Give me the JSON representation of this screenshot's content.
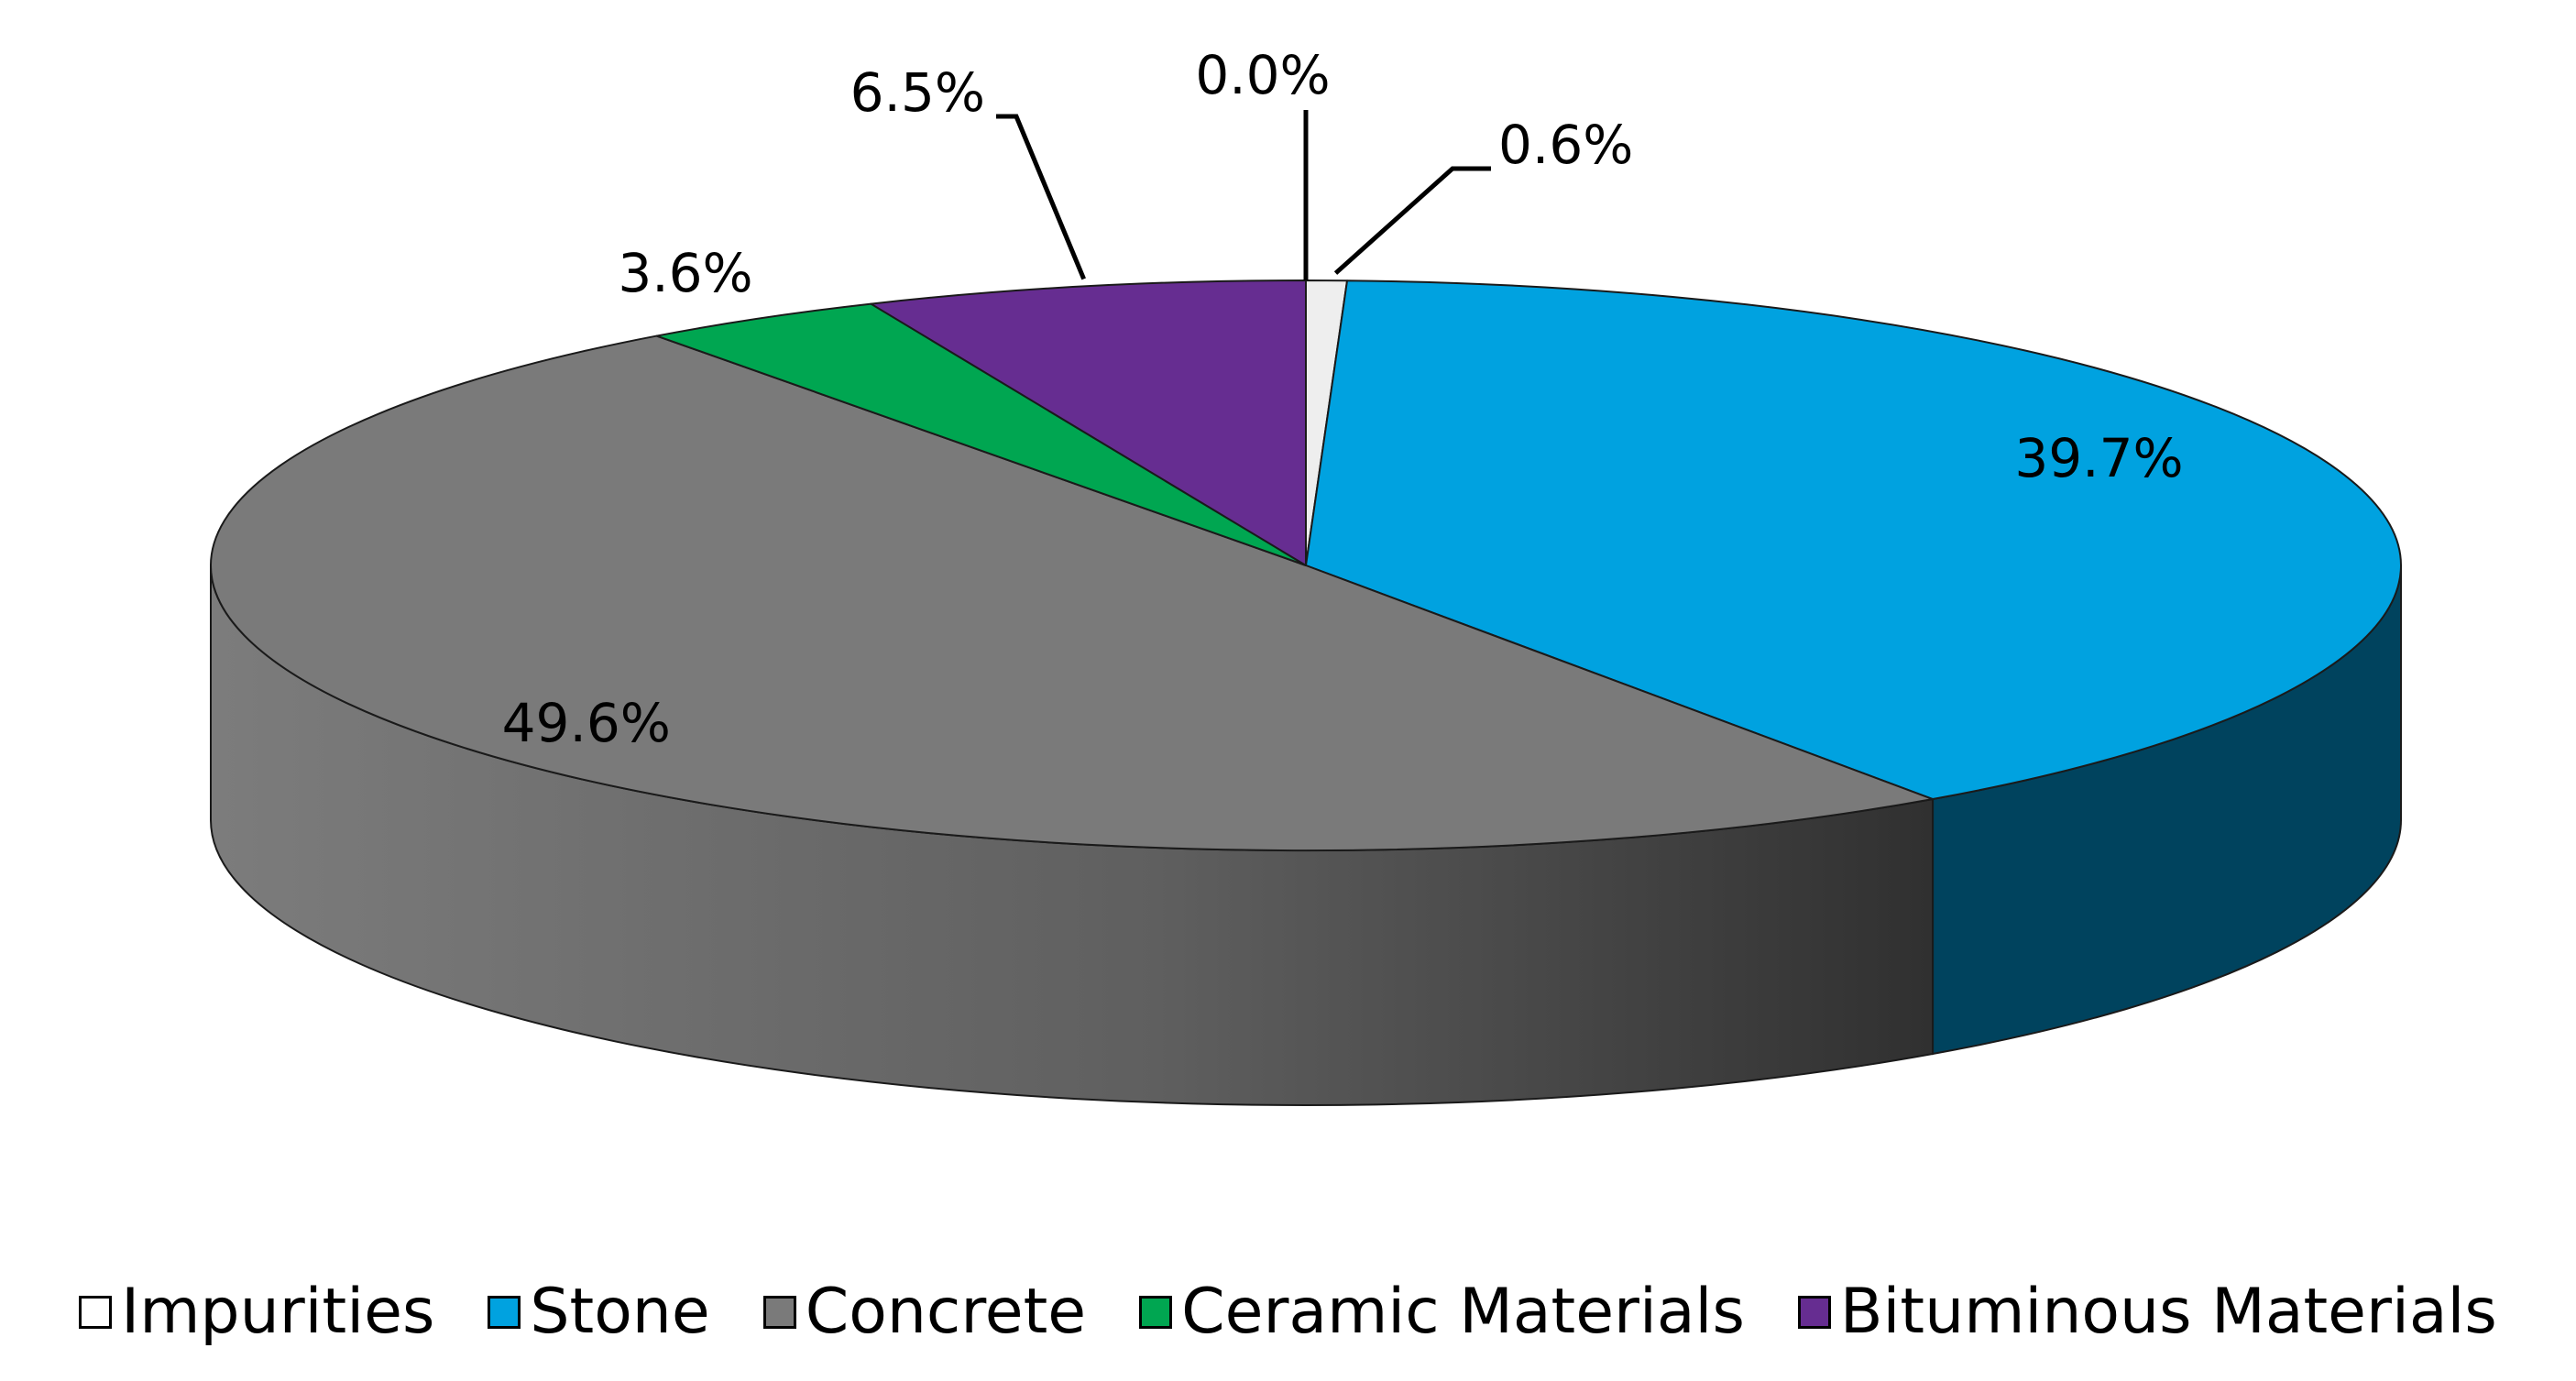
{
  "chart_data": {
    "type": "pie",
    "style": "3d",
    "categories": [
      "Impurities",
      "Stone",
      "Concrete",
      "Ceramic Materials",
      "Bituminous Materials"
    ],
    "values": [
      0.6,
      39.7,
      49.6,
      3.6,
      6.5
    ],
    "extra_labels": [
      {
        "label": "0.0%",
        "value": 0.0
      }
    ],
    "data_labels": [
      "0.6%",
      "39.7%",
      "49.6%",
      "3.6%",
      "6.5%"
    ],
    "colors": [
      "#eeeeee",
      "#00a2e0",
      "#7a7a7a",
      "#00a651",
      "#662d91"
    ],
    "side_colors": [
      "#bfbfbf",
      "#00435e",
      "#555555",
      "#00612f",
      "#3b1a54"
    ],
    "legend_position": "bottom",
    "title": ""
  }
}
